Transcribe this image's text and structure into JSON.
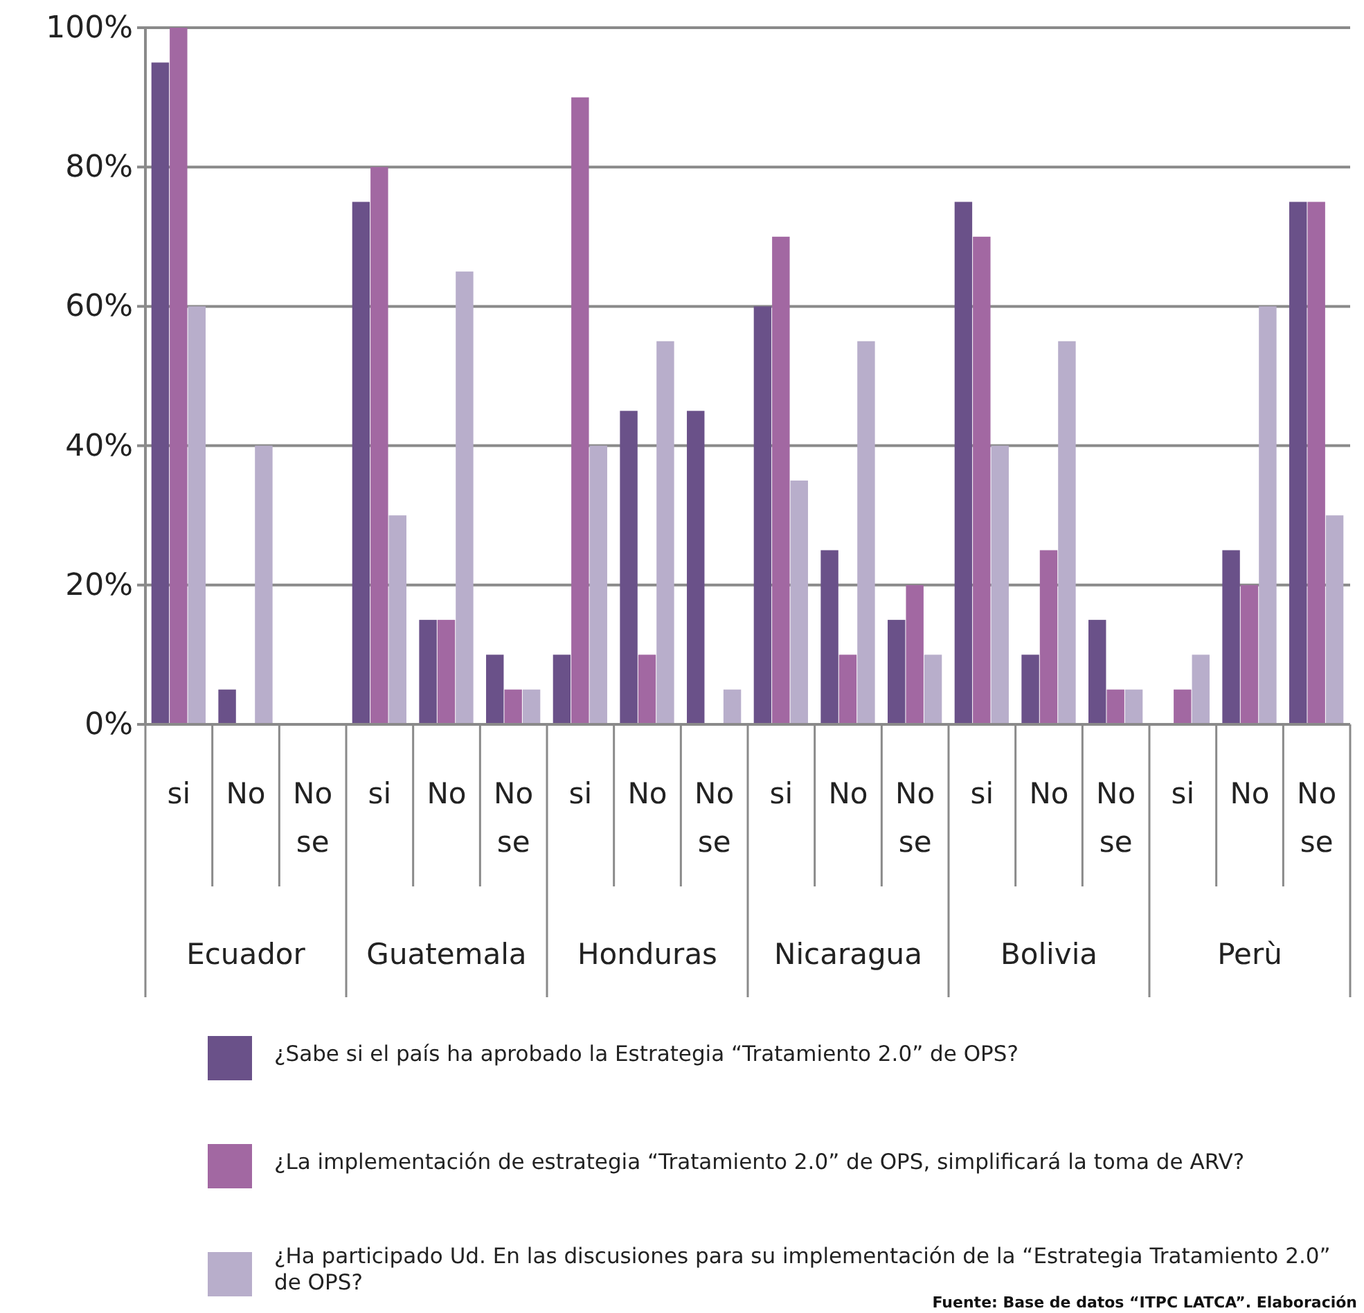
{
  "chart_data": {
    "type": "bar",
    "categories": [
      "si",
      "No",
      "No se",
      "si",
      "No",
      "No se",
      "si",
      "No",
      "No se",
      "si",
      "No",
      "No se",
      "si",
      "No",
      "No se",
      "si",
      "No",
      "No se"
    ],
    "series": [
      {
        "name": "¿Sabe si el país ha aprobado la Estrategia “Tratamiento 2.0” de OPS?",
        "color": "#6a5189",
        "values": [
          95,
          5,
          0,
          75,
          15,
          10,
          10,
          45,
          45,
          60,
          25,
          15,
          75,
          10,
          15,
          0,
          25,
          75
        ]
      },
      {
        "name": "¿La implementación de estrategia “Tratamiento 2.0” de OPS, simplificará la toma de ARV?",
        "color": "#a268a2",
        "values": [
          100,
          0,
          0,
          80,
          15,
          5,
          90,
          10,
          0,
          70,
          10,
          20,
          70,
          25,
          5,
          5,
          20,
          75
        ]
      },
      {
        "name": "¿Ha participado Ud. En las discusiones para su implementación de la “Estrategia Tratamiento 2.0” de OPS?",
        "color": "#b8aecb",
        "values": [
          60,
          40,
          0,
          30,
          65,
          5,
          40,
          55,
          5,
          35,
          55,
          10,
          40,
          55,
          5,
          10,
          60,
          30
        ]
      }
    ],
    "ylim": [
      0,
      100
    ],
    "yticks": [
      {
        "value": 0,
        "label": "0%"
      },
      {
        "value": 20,
        "label": "20%"
      },
      {
        "value": 40,
        "label": "40%"
      },
      {
        "value": 60,
        "label": "60%"
      },
      {
        "value": 80,
        "label": "80%"
      },
      {
        "value": 100,
        "label": "100%"
      }
    ],
    "grid": "y",
    "legend": "bottom",
    "annotations": [
      "Ecuador",
      "Guatemala",
      "Honduras",
      "Nicaragua",
      "Bolivia",
      "Perù",
      "Fuente: Base de datos “ITPC LATCA”. Elaboración"
    ]
  }
}
